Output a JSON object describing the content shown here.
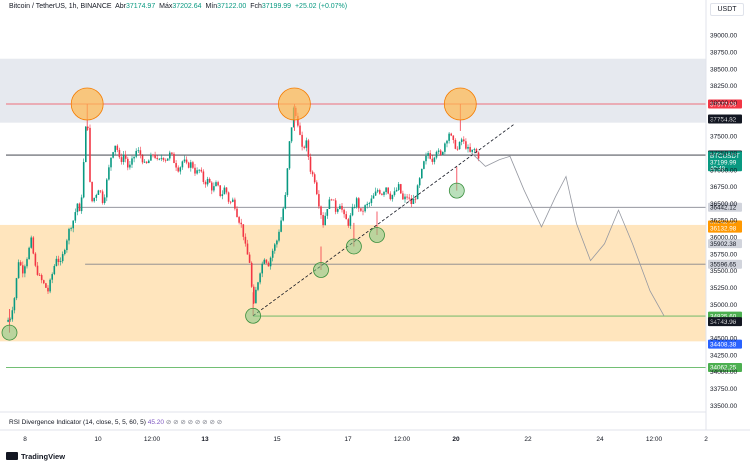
{
  "header": {
    "symbol": "Bitcoin / TetherUS, 1h, BINANCE",
    "open_label": "Abr",
    "open": "37174.97",
    "high_label": "Máx",
    "high": "37202.64",
    "low_label": "Mín",
    "low": "37122.00",
    "close_label": "Fch",
    "close": "37199.99",
    "change": "+25.02 (+0.07%)"
  },
  "currency_button": "USDT",
  "indicator": {
    "name": "RSI Divergence Indicator (14, close, 5, 5, 60, 5)",
    "value": "45.20",
    "icons": [
      "circle-icon",
      "circle-icon",
      "circle-icon",
      "circle-icon",
      "circle-icon",
      "circle-icon",
      "circle-icon",
      "circle-icon"
    ]
  },
  "footer": {
    "brand": "TradingView"
  },
  "colors": {
    "up": "#089981",
    "down": "#f23645",
    "resistance": "#f23645",
    "support_green": "#4caf50",
    "grey_line": "#787b86",
    "orange_zone": "#ffe0b2",
    "grey_zone": "#e0e3eb",
    "label_orange": "#ff9800",
    "label_blue": "#2962ff",
    "label_black": "#131722"
  },
  "chart_data": {
    "type": "candlestick",
    "ylim": [
      33400,
      39300
    ],
    "y_ticks": [
      39000,
      38750,
      38500,
      38250,
      38000,
      37750,
      37500,
      37250,
      37000,
      36750,
      36500,
      36250,
      36000,
      35750,
      35500,
      35250,
      35000,
      34750,
      34500,
      34250,
      34000,
      33750,
      33500
    ],
    "x_ticks": [
      "8",
      "10",
      "12:00",
      "13",
      "15",
      "17",
      "12:00",
      "20",
      "22",
      "24",
      "12:00",
      "2"
    ],
    "price_path": [
      [
        0,
        34740
      ],
      [
        0.6,
        34800
      ],
      [
        1.2,
        35100
      ],
      [
        1.8,
        35650
      ],
      [
        2.4,
        35500
      ],
      [
        3.0,
        35700
      ],
      [
        3.6,
        35950
      ],
      [
        4.2,
        35550
      ],
      [
        4.8,
        35400
      ],
      [
        5.4,
        35300
      ],
      [
        6.0,
        35200
      ],
      [
        6.6,
        35450
      ],
      [
        7.2,
        35700
      ],
      [
        7.8,
        35600
      ],
      [
        8.4,
        35850
      ],
      [
        9.0,
        36100
      ],
      [
        9.6,
        36250
      ],
      [
        10.2,
        36500
      ],
      [
        10.6,
        36300
      ],
      [
        11.1,
        37100
      ],
      [
        11.6,
        37950
      ],
      [
        12.1,
        36500
      ],
      [
        12.7,
        36600
      ],
      [
        13.3,
        36750
      ],
      [
        13.9,
        36500
      ],
      [
        14.5,
        36900
      ],
      [
        15.1,
        37250
      ],
      [
        15.7,
        37400
      ],
      [
        16.3,
        37100
      ],
      [
        16.9,
        37250
      ],
      [
        17.5,
        37000
      ],
      [
        18.1,
        37150
      ],
      [
        18.7,
        37300
      ],
      [
        19.3,
        37200
      ],
      [
        19.9,
        37050
      ],
      [
        20.5,
        37150
      ],
      [
        21.1,
        37250
      ],
      [
        21.7,
        37100
      ],
      [
        22.3,
        37200
      ],
      [
        22.9,
        37150
      ],
      [
        23.5,
        37250
      ],
      [
        24.1,
        37100
      ],
      [
        24.7,
        37000
      ],
      [
        25.3,
        37150
      ],
      [
        25.9,
        37050
      ],
      [
        26.5,
        37100
      ],
      [
        27.1,
        36950
      ],
      [
        27.7,
        37000
      ],
      [
        28.3,
        36800
      ],
      [
        28.9,
        36850
      ],
      [
        29.5,
        36700
      ],
      [
        30.1,
        36800
      ],
      [
        30.7,
        36600
      ],
      [
        31.3,
        36750
      ],
      [
        31.9,
        36500
      ],
      [
        32.5,
        36550
      ],
      [
        33.1,
        36300
      ],
      [
        33.7,
        36150
      ],
      [
        34.3,
        35800
      ],
      [
        34.9,
        35600
      ],
      [
        35.3,
        34900
      ],
      [
        35.7,
        35200
      ],
      [
        36.3,
        35500
      ],
      [
        36.9,
        35700
      ],
      [
        37.5,
        35600
      ],
      [
        38.1,
        35800
      ],
      [
        38.7,
        35950
      ],
      [
        39.3,
        36250
      ],
      [
        39.9,
        36600
      ],
      [
        40.5,
        37400
      ],
      [
        41.1,
        37900
      ],
      [
        41.7,
        37700
      ],
      [
        42.3,
        37300
      ],
      [
        42.9,
        37400
      ],
      [
        43.5,
        37000
      ],
      [
        44.1,
        36850
      ],
      [
        44.7,
        36500
      ],
      [
        45.3,
        36200
      ],
      [
        45.9,
        36450
      ],
      [
        46.5,
        36600
      ],
      [
        47.1,
        36400
      ],
      [
        47.7,
        36500
      ],
      [
        48.3,
        36300
      ],
      [
        48.9,
        36200
      ],
      [
        49.5,
        36400
      ],
      [
        50.1,
        36550
      ],
      [
        50.7,
        36350
      ],
      [
        51.3,
        36450
      ],
      [
        51.9,
        36500
      ],
      [
        52.5,
        36600
      ],
      [
        53.1,
        36700
      ],
      [
        53.7,
        36650
      ],
      [
        54.3,
        36750
      ],
      [
        54.9,
        36600
      ],
      [
        55.5,
        36650
      ],
      [
        56.1,
        36750
      ],
      [
        56.7,
        36550
      ],
      [
        57.3,
        36600
      ],
      [
        57.9,
        36500
      ],
      [
        58.5,
        36600
      ],
      [
        59.1,
        36850
      ],
      [
        59.7,
        37100
      ],
      [
        60.3,
        37250
      ],
      [
        60.9,
        37150
      ],
      [
        61.5,
        37300
      ],
      [
        62.1,
        37200
      ],
      [
        62.7,
        37400
      ],
      [
        63.3,
        37550
      ],
      [
        63.9,
        37400
      ],
      [
        64.5,
        37300
      ],
      [
        65.1,
        37450
      ],
      [
        65.7,
        37350
      ],
      [
        66.3,
        37250
      ],
      [
        66.9,
        37300
      ],
      [
        67.5,
        37200
      ]
    ],
    "levels": [
      {
        "price": 37977.09,
        "label": "37977.09",
        "style": "resistance",
        "x_start": 0
      },
      {
        "price": 37754.82,
        "label": "37754.82",
        "style": "label-only"
      },
      {
        "price": 37218.73,
        "label": "37218.73",
        "style": "dark",
        "x_start": 0
      },
      {
        "price": 37199.99,
        "label": "BTCUSDT",
        "sub": "37199.99",
        "sub2": "40:48",
        "style": "current"
      },
      {
        "price": 36442.12,
        "label": "36442.12",
        "style": "grey",
        "x_start": 10.2
      },
      {
        "price": 36179.85,
        "label": "36179.85",
        "style": "orange"
      },
      {
        "price": 36132.98,
        "label": "36132.98",
        "style": "orange"
      },
      {
        "price": 35902.38,
        "label": "35902.38",
        "style": "grey-label"
      },
      {
        "price": 35596.65,
        "label": "35596.65",
        "style": "grey",
        "x_start": 11.3
      },
      {
        "price": 34825.6,
        "label": "34825.60",
        "style": "green",
        "x_start": 35.3
      },
      {
        "price": 34743.96,
        "label": "34743.96",
        "style": "dark-label"
      },
      {
        "price": 34408.38,
        "label": "34408.38",
        "style": "blue"
      },
      {
        "price": 34062.25,
        "label": "34062.25",
        "style": "green",
        "x_start": 0
      }
    ],
    "zones": [
      {
        "from": 37700,
        "to": 38650,
        "color": "grey"
      },
      {
        "from": 34450,
        "to": 36180,
        "color": "orange"
      }
    ],
    "highs_marked": [
      [
        11.6,
        37977
      ],
      [
        41.2,
        37977
      ],
      [
        64.9,
        37977
      ]
    ],
    "lows_marked": [
      [
        0.5,
        34580
      ],
      [
        35.3,
        34830
      ],
      [
        45.0,
        35510
      ],
      [
        49.7,
        35860
      ],
      [
        53.0,
        36030
      ],
      [
        64.4,
        36690
      ]
    ],
    "trendline": [
      [
        35.3,
        34830
      ],
      [
        72.5,
        37670
      ]
    ],
    "projection": [
      [
        66.5,
        37250
      ],
      [
        68.5,
        37050
      ],
      [
        70.5,
        37150
      ],
      [
        72.0,
        37200
      ],
      [
        74.0,
        36700
      ],
      [
        76.5,
        36150
      ],
      [
        78.5,
        36600
      ],
      [
        80.0,
        36900
      ],
      [
        81.5,
        36200
      ],
      [
        83.5,
        35650
      ],
      [
        85.5,
        35900
      ],
      [
        87.5,
        36400
      ],
      [
        89.5,
        35900
      ],
      [
        92.0,
        35200
      ],
      [
        94.0,
        34830
      ]
    ]
  }
}
